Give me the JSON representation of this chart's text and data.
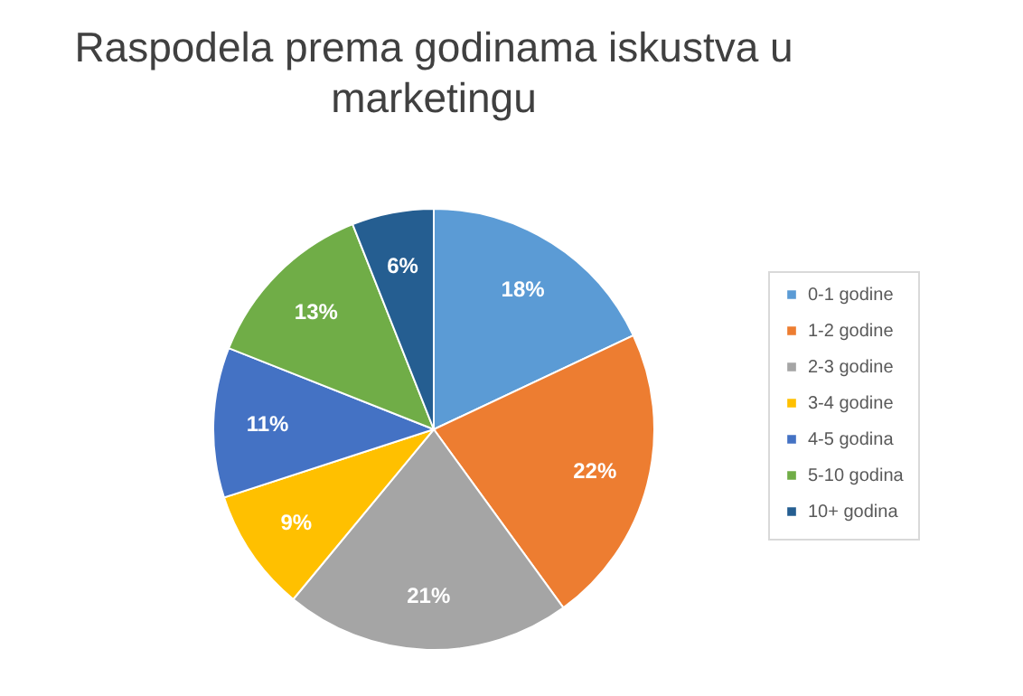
{
  "chart_data": {
    "type": "pie",
    "title": "Raspodela prema godinama iskustva u marketingu",
    "categories": [
      "0-1 godine",
      "1-2 godine",
      "2-3 godine",
      "3-4 godine",
      "4-5 godina",
      "5-10 godina",
      "10+ godina"
    ],
    "values": [
      18,
      22,
      21,
      9,
      11,
      13,
      6
    ],
    "colors": [
      "#5b9bd5",
      "#ed7d31",
      "#a5a5a5",
      "#ffc000",
      "#4472c4",
      "#70ad47",
      "#255e91"
    ],
    "value_labels": [
      "18%",
      "22%",
      "21%",
      "9%",
      "11%",
      "13%",
      "6%"
    ],
    "legend": "right"
  }
}
